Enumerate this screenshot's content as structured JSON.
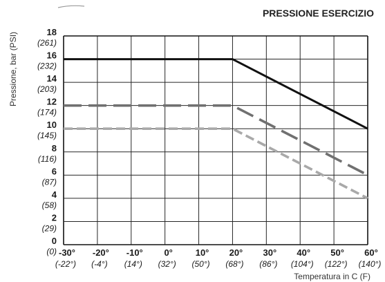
{
  "chart_data": {
    "type": "line",
    "title": "PRESSIONE ESERCIZIO",
    "xlabel": "Temperatura in C (F)",
    "ylabel": "Pressione, bar (PSI)",
    "xlim": [
      -30,
      60
    ],
    "ylim": [
      0,
      18
    ],
    "grid": true,
    "x_ticks": [
      -30,
      -20,
      -10,
      0,
      10,
      20,
      30,
      40,
      50,
      60
    ],
    "x_tick_labels": [
      "-30°",
      "-20°",
      "-10°",
      "0°",
      "10°",
      "20°",
      "30°",
      "40°",
      "50°",
      "60°"
    ],
    "x_tick_labels_f": [
      "(-22°)",
      "(-4°)",
      "(14°)",
      "(32°)",
      "(50°)",
      "(68°)",
      "(86°)",
      "(104°)",
      "(122°)",
      "(140°)"
    ],
    "y_ticks": [
      0,
      2,
      4,
      6,
      8,
      10,
      12,
      14,
      16,
      18
    ],
    "y_tick_labels": [
      "0",
      "2",
      "4",
      "6",
      "8",
      "10",
      "12",
      "14",
      "16",
      "18"
    ],
    "y_tick_labels_psi": [
      "(0)",
      "(29)",
      "(58)",
      "(87)",
      "(116)",
      "(145)",
      "(174)",
      "(203)",
      "(232)",
      "(261)"
    ],
    "series": [
      {
        "x": [
          -30,
          20,
          60
        ],
        "values": [
          16,
          16,
          10
        ],
        "color": "#111111"
      },
      {
        "x": [
          -30,
          20,
          60
        ],
        "values": [
          12,
          12,
          6
        ],
        "color": "#707070"
      },
      {
        "x": [
          -30,
          20,
          60
        ],
        "values": [
          10,
          10,
          4
        ],
        "color": "#a9a9a9"
      }
    ]
  }
}
